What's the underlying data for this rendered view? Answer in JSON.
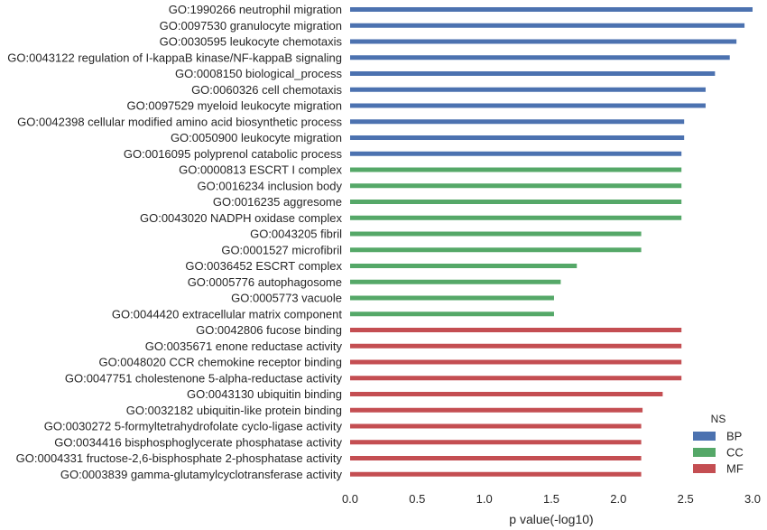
{
  "chart_data": {
    "type": "bar",
    "orientation": "horizontal",
    "categories": [
      "GO:1990266 neutrophil migration",
      "GO:0097530 granulocyte migration",
      "GO:0030595 leukocyte chemotaxis",
      "GO:0043122 regulation of I-kappaB kinase/NF-kappaB signaling",
      "GO:0008150 biological_process",
      "GO:0060326 cell chemotaxis",
      "GO:0097529 myeloid leukocyte migration",
      "GO:0042398 cellular modified amino acid biosynthetic process",
      "GO:0050900 leukocyte migration",
      "GO:0016095 polyprenol catabolic process",
      "GO:0000813 ESCRT I complex",
      "GO:0016234 inclusion body",
      "GO:0016235 aggresome",
      "GO:0043020 NADPH oxidase complex",
      "GO:0043205 fibril",
      "GO:0001527 microfibril",
      "GO:0036452 ESCRT complex",
      "GO:0005776 autophagosome",
      "GO:0005773 vacuole",
      "GO:0044420 extracellular matrix component",
      "GO:0042806 fucose binding",
      "GO:0035671 enone reductase activity",
      "GO:0048020 CCR chemokine receptor binding",
      "GO:0047751 cholestenone 5-alpha-reductase activity",
      "GO:0043130 ubiquitin binding",
      "GO:0032182 ubiquitin-like protein binding",
      "GO:0030272 5-formyltetrahydrofolate cyclo-ligase activity",
      "GO:0034416 bisphosphoglycerate phosphatase activity",
      "GO:0004331 fructose-2,6-bisphosphate 2-phosphatase activity",
      "GO:0003839 gamma-glutamylcyclotransferase activity"
    ],
    "values": [
      3.0,
      2.94,
      2.88,
      2.83,
      2.72,
      2.65,
      2.65,
      2.49,
      2.49,
      2.47,
      2.47,
      2.47,
      2.47,
      2.47,
      2.17,
      2.17,
      1.69,
      1.57,
      1.52,
      1.52,
      2.47,
      2.47,
      2.47,
      2.47,
      2.33,
      2.18,
      2.17,
      2.17,
      2.17,
      2.17
    ],
    "groups": [
      "BP",
      "BP",
      "BP",
      "BP",
      "BP",
      "BP",
      "BP",
      "BP",
      "BP",
      "BP",
      "CC",
      "CC",
      "CC",
      "CC",
      "CC",
      "CC",
      "CC",
      "CC",
      "CC",
      "CC",
      "MF",
      "MF",
      "MF",
      "MF",
      "MF",
      "MF",
      "MF",
      "MF",
      "MF",
      "MF"
    ],
    "xlabel": "p value(-log10)",
    "xlim": [
      0,
      3.0
    ],
    "xticks": [
      "0.0",
      "0.5",
      "1.0",
      "1.5",
      "2.0",
      "2.5",
      "3.0"
    ],
    "grid": false,
    "legend": {
      "title": "NS",
      "placement": "bottom-right",
      "entries": [
        {
          "name": "BP",
          "color": "#4c72b0"
        },
        {
          "name": "CC",
          "color": "#55a868"
        },
        {
          "name": "MF",
          "color": "#c44e52"
        }
      ]
    }
  }
}
